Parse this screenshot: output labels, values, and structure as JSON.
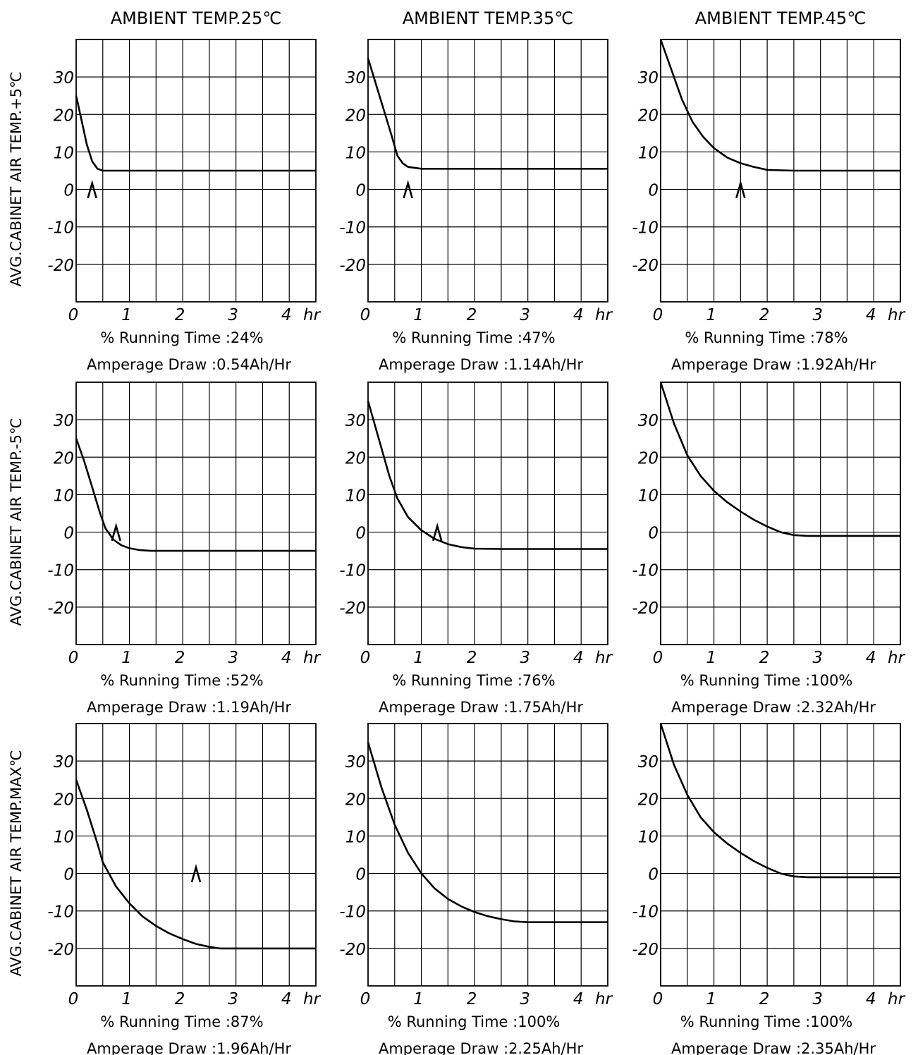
{
  "column_titles": [
    "AMBIENT TEMP.25℃",
    "AMBIENT TEMP.35℃",
    "AMBIENT TEMP.45℃"
  ],
  "row_labels": [
    "AVG.CABINET AIR TEMP.+5℃",
    "AVG.CABINET AIR TEMP.-5℃",
    "AVG.CABINET AIR TEMP.MAX℃"
  ],
  "chart_data": [
    {
      "type": "line",
      "row": 0,
      "col": 0,
      "x": [
        0,
        0.1,
        0.2,
        0.3,
        0.4,
        0.5,
        0.7,
        1,
        1.5,
        2,
        3,
        4,
        4.5
      ],
      "y": [
        25,
        18.5,
        12,
        7.5,
        5.5,
        5,
        5,
        5,
        5,
        5,
        5,
        5,
        5
      ],
      "marker_x": 0.3,
      "xlim": [
        0,
        4.5
      ],
      "ylim": [
        -30,
        40
      ],
      "yticks": [
        "30",
        "20",
        "10",
        "0",
        "-10",
        "-20"
      ],
      "xticks": [
        "0",
        "1",
        "2",
        "3",
        "4"
      ],
      "xunit": "hr",
      "caption_running": "% Running Time :24%",
      "caption_amperage": "Amperage Draw :0.54Ah/Hr"
    },
    {
      "type": "line",
      "row": 0,
      "col": 1,
      "x": [
        0,
        0.15,
        0.3,
        0.45,
        0.55,
        0.65,
        0.75,
        1,
        1.5,
        2,
        3,
        4,
        4.5
      ],
      "y": [
        35,
        28,
        21,
        14,
        9,
        7,
        6,
        5.5,
        5.5,
        5.5,
        5.5,
        5.5,
        5.5
      ],
      "marker_x": 0.75,
      "xlim": [
        0,
        4.5
      ],
      "ylim": [
        -30,
        40
      ],
      "yticks": [
        "30",
        "20",
        "10",
        "0",
        "-10",
        "-20"
      ],
      "xticks": [
        "0",
        "1",
        "2",
        "3",
        "4"
      ],
      "xunit": "hr",
      "caption_running": "% Running Time :47%",
      "caption_amperage": "Amperage Draw :1.14Ah/Hr"
    },
    {
      "type": "line",
      "row": 0,
      "col": 2,
      "x": [
        0,
        0.2,
        0.4,
        0.6,
        0.8,
        1,
        1.25,
        1.5,
        1.75,
        2,
        2.5,
        3,
        4,
        4.5
      ],
      "y": [
        40,
        32,
        24,
        18,
        14,
        11,
        8.5,
        7,
        6,
        5.2,
        5,
        5,
        5,
        5
      ],
      "marker_x": 1.5,
      "xlim": [
        0,
        4.5
      ],
      "ylim": [
        -30,
        40
      ],
      "yticks": [
        "30",
        "20",
        "10",
        "0",
        "-10",
        "-20"
      ],
      "xticks": [
        "0",
        "1",
        "2",
        "3",
        "4"
      ],
      "xunit": "hr",
      "caption_running": "% Running Time :78%",
      "caption_amperage": "Amperage Draw :1.92Ah/Hr"
    },
    {
      "type": "line",
      "row": 1,
      "col": 0,
      "x": [
        0,
        0.15,
        0.3,
        0.45,
        0.55,
        0.7,
        0.85,
        1,
        1.2,
        1.4,
        2,
        3,
        4,
        4.5
      ],
      "y": [
        25,
        19,
        12,
        5,
        1,
        -2,
        -3.5,
        -4.3,
        -4.8,
        -5,
        -5,
        -5,
        -5,
        -5
      ],
      "marker_x": 0.75,
      "xlim": [
        0,
        4.5
      ],
      "ylim": [
        -30,
        40
      ],
      "yticks": [
        "30",
        "20",
        "10",
        "0",
        "-10",
        "-20"
      ],
      "xticks": [
        "0",
        "1",
        "2",
        "3",
        "4"
      ],
      "xunit": "hr",
      "caption_running": "% Running Time :52%",
      "caption_amperage": "Amperage Draw :1.19Ah/Hr"
    },
    {
      "type": "line",
      "row": 1,
      "col": 1,
      "x": [
        0,
        0.2,
        0.4,
        0.55,
        0.75,
        1,
        1.25,
        1.5,
        1.75,
        2,
        2.5,
        3,
        4,
        4.5
      ],
      "y": [
        35,
        25,
        15,
        9,
        4,
        0.5,
        -1.8,
        -3.2,
        -4,
        -4.4,
        -4.5,
        -4.5,
        -4.5,
        -4.5
      ],
      "marker_x": 1.3,
      "xlim": [
        0,
        4.5
      ],
      "ylim": [
        -30,
        40
      ],
      "yticks": [
        "30",
        "20",
        "10",
        "0",
        "-10",
        "-20"
      ],
      "xticks": [
        "0",
        "1",
        "2",
        "3",
        "4"
      ],
      "xunit": "hr",
      "caption_running": "% Running Time :76%",
      "caption_amperage": "Amperage Draw :1.75Ah/Hr"
    },
    {
      "type": "line",
      "row": 1,
      "col": 2,
      "x": [
        0,
        0.25,
        0.5,
        0.75,
        1,
        1.25,
        1.5,
        1.75,
        2,
        2.25,
        2.5,
        2.75,
        3,
        4,
        4.5
      ],
      "y": [
        40,
        29,
        20.5,
        15,
        11,
        8,
        5.5,
        3.3,
        1.5,
        0,
        -0.8,
        -1,
        -1,
        -1,
        -1
      ],
      "xlim": [
        0,
        4.5
      ],
      "ylim": [
        -30,
        40
      ],
      "yticks": [
        "30",
        "20",
        "10",
        "0",
        "-10",
        "-20"
      ],
      "xticks": [
        "0",
        "1",
        "2",
        "3",
        "4"
      ],
      "xunit": "hr",
      "caption_running": "% Running Time :100%",
      "caption_amperage": "Amperage Draw :2.32Ah/Hr"
    },
    {
      "type": "line",
      "row": 2,
      "col": 0,
      "x": [
        0,
        0.2,
        0.4,
        0.5,
        0.75,
        1,
        1.25,
        1.5,
        1.75,
        2,
        2.25,
        2.5,
        2.7,
        3,
        4,
        4.5
      ],
      "y": [
        25,
        17,
        8,
        3,
        -3.5,
        -8,
        -11.5,
        -14,
        -16,
        -17.5,
        -18.8,
        -19.6,
        -20,
        -20,
        -20,
        -20
      ],
      "marker_x": 2.25,
      "xlim": [
        0,
        4.5
      ],
      "ylim": [
        -30,
        40
      ],
      "yticks": [
        "30",
        "20",
        "10",
        "0",
        "-10",
        "-20"
      ],
      "xticks": [
        "0",
        "1",
        "2",
        "3",
        "4"
      ],
      "xunit": "hr",
      "caption_running": "% Running Time :87%",
      "caption_amperage": "Amperage Draw :1.96Ah/Hr"
    },
    {
      "type": "line",
      "row": 2,
      "col": 1,
      "x": [
        0,
        0.25,
        0.5,
        0.75,
        1,
        1.25,
        1.5,
        1.75,
        2,
        2.25,
        2.5,
        2.75,
        3,
        4,
        4.5
      ],
      "y": [
        35,
        23,
        13,
        5.5,
        0,
        -4,
        -6.8,
        -8.8,
        -10.3,
        -11.4,
        -12.2,
        -12.8,
        -13,
        -13,
        -13
      ],
      "xlim": [
        0,
        4.5
      ],
      "ylim": [
        -30,
        40
      ],
      "yticks": [
        "30",
        "20",
        "10",
        "0",
        "-10",
        "-20"
      ],
      "xticks": [
        "0",
        "1",
        "2",
        "3",
        "4"
      ],
      "xunit": "hr",
      "caption_running": "% Running Time :100%",
      "caption_amperage": "Amperage Draw :2.25Ah/Hr"
    },
    {
      "type": "line",
      "row": 2,
      "col": 2,
      "x": [
        0,
        0.25,
        0.5,
        0.75,
        1,
        1.25,
        1.5,
        1.75,
        2,
        2.25,
        2.5,
        2.75,
        3,
        4,
        4.5
      ],
      "y": [
        40,
        29,
        21,
        15,
        11,
        8,
        5.5,
        3.3,
        1.5,
        0,
        -0.8,
        -1,
        -1,
        -1,
        -1
      ],
      "xlim": [
        0,
        4.5
      ],
      "ylim": [
        -30,
        40
      ],
      "yticks": [
        "30",
        "20",
        "10",
        "0",
        "-10",
        "-20"
      ],
      "xticks": [
        "0",
        "1",
        "2",
        "3",
        "4"
      ],
      "xunit": "hr",
      "caption_running": "% Running Time :100%",
      "caption_amperage": "Amperage Draw :2.35Ah/Hr"
    }
  ]
}
